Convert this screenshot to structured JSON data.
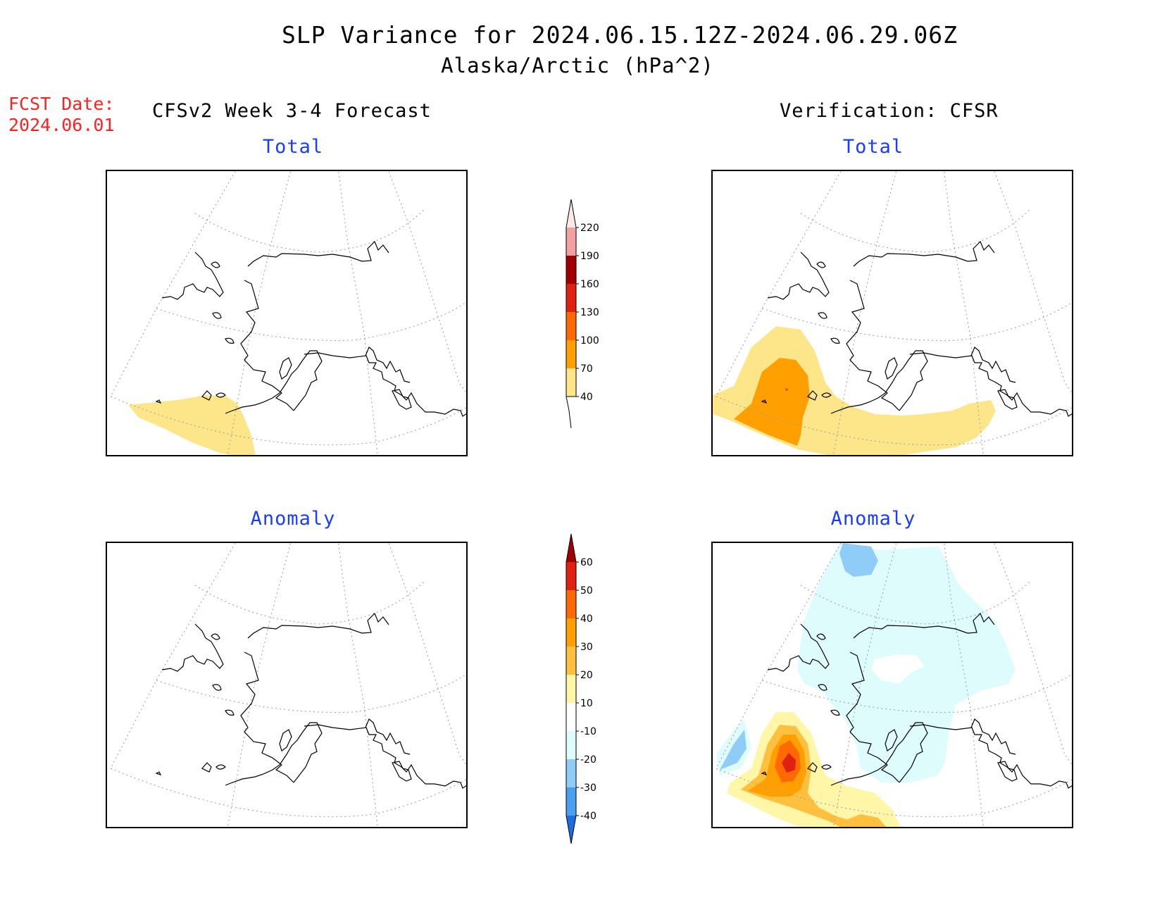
{
  "header": {
    "title": "SLP Variance for 2024.06.15.12Z-2024.06.29.06Z",
    "subtitle": "Alaska/Arctic (hPa^2)",
    "fcst_date_label": "FCST Date:",
    "fcst_date_value": "2024.06.01",
    "left_column_title": "CFSv2 Week 3-4 Forecast",
    "right_column_title": "Verification: CFSR"
  },
  "panels": {
    "forecast_total": {
      "title": "Total"
    },
    "verification_total": {
      "title": "Total"
    },
    "forecast_anomaly": {
      "title": "Anomaly"
    },
    "verification_anomaly": {
      "title": "Anomaly"
    }
  },
  "colorbars": {
    "total": {
      "labels": [
        "220",
        "190",
        "160",
        "130",
        "100",
        "70",
        "40"
      ],
      "colors": [
        "#fde8e8",
        "#f2a0a0",
        "#a00000",
        "#e02010",
        "#ff6a00",
        "#ffa000",
        "#fde68a"
      ]
    },
    "anomaly": {
      "labels": [
        "60",
        "50",
        "40",
        "30",
        "20",
        "10",
        "-10",
        "-20",
        "-30",
        "-40"
      ],
      "colors": [
        "#a00000",
        "#e02010",
        "#ff6a00",
        "#ffa000",
        "#ffc040",
        "#fff6a8",
        "#ffffff",
        "#dffcfc",
        "#90ccf8",
        "#4aa0ef",
        "#1a6ee0"
      ]
    }
  }
}
